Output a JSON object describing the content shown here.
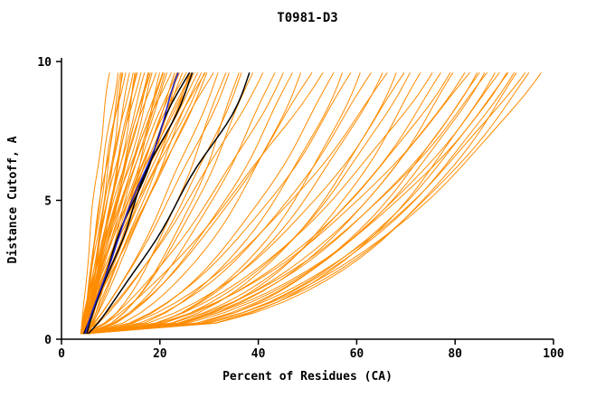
{
  "title": "T0981-D3",
  "colors": {
    "orange": "#FF8C00",
    "black": "#000000",
    "blue": "#2222CC",
    "axis": "#000000",
    "background": "#FFFFFF"
  },
  "chart_data": {
    "type": "line",
    "title": "T0981-D3",
    "xlabel": "Percent of Residues (CA)",
    "ylabel": "Distance Cutoff, A",
    "xlim": [
      0,
      100
    ],
    "ylim": [
      0,
      10
    ],
    "x_ticks": [
      0,
      20,
      40,
      60,
      80,
      100
    ],
    "y_ticks": [
      0,
      5,
      10
    ],
    "grid": false,
    "legend": "none",
    "curve_y_start": 0.2,
    "curve_y_end": 9.6,
    "curve_point_format": "[x_percent_at_bottom, x_percent_at_top_10A, shape_exponent]",
    "orange_curves": [
      [
        4,
        10,
        1.2
      ],
      [
        4.5,
        11,
        1.0
      ],
      [
        5,
        12,
        1.3
      ],
      [
        4,
        12,
        0.9
      ],
      [
        5,
        13,
        1.1
      ],
      [
        4.5,
        13,
        1.3
      ],
      [
        4,
        14,
        1.0
      ],
      [
        5.5,
        14,
        1.2
      ],
      [
        4,
        15,
        0.8
      ],
      [
        5,
        15,
        1.1
      ],
      [
        4.5,
        16,
        1.3
      ],
      [
        4,
        16,
        1.0
      ],
      [
        5,
        17,
        1.2
      ],
      [
        4.5,
        17,
        0.9
      ],
      [
        4,
        18,
        1.1
      ],
      [
        5.5,
        18,
        1.3
      ],
      [
        4,
        19,
        1.0
      ],
      [
        5,
        19,
        1.2
      ],
      [
        4.5,
        20,
        0.85
      ],
      [
        5,
        20,
        1.1
      ],
      [
        4,
        21,
        1.25
      ],
      [
        5.5,
        21,
        0.95
      ],
      [
        4,
        22,
        1.1
      ],
      [
        5,
        22,
        1.3
      ],
      [
        4.5,
        23,
        1.0
      ],
      [
        5,
        23,
        1.2
      ],
      [
        4,
        24,
        0.9
      ],
      [
        5.5,
        24,
        1.15
      ],
      [
        4,
        25,
        1.05
      ],
      [
        5,
        25,
        1.25
      ],
      [
        4.5,
        26,
        0.95
      ],
      [
        5,
        26,
        1.15
      ],
      [
        4,
        27,
        1.3
      ],
      [
        5.5,
        27,
        1.0
      ],
      [
        4,
        28,
        1.2
      ],
      [
        5,
        28,
        0.9
      ],
      [
        4.5,
        29,
        1.1
      ],
      [
        5,
        29,
        1.25
      ],
      [
        4,
        30,
        1.0
      ],
      [
        5.5,
        31,
        1.15
      ],
      [
        4,
        32,
        0.75
      ],
      [
        5,
        33,
        0.6
      ],
      [
        4.5,
        34,
        0.8
      ],
      [
        5,
        36,
        0.55
      ],
      [
        4,
        37,
        0.7
      ],
      [
        5.5,
        39,
        0.62
      ],
      [
        4,
        41,
        0.78
      ],
      [
        5,
        43,
        0.58
      ],
      [
        4.5,
        45,
        0.7
      ],
      [
        5,
        47,
        0.6
      ],
      [
        4,
        49,
        0.52
      ],
      [
        5,
        51,
        0.66
      ],
      [
        4.5,
        53,
        0.74
      ],
      [
        4,
        55,
        0.5
      ],
      [
        5,
        57,
        0.46
      ],
      [
        4.5,
        59,
        0.55
      ],
      [
        5,
        61,
        0.42
      ],
      [
        4,
        63,
        0.5
      ],
      [
        5.5,
        65,
        0.45
      ],
      [
        4,
        66,
        0.55
      ],
      [
        5,
        68,
        0.4
      ],
      [
        4.5,
        70,
        0.5
      ],
      [
        5,
        71,
        0.45
      ],
      [
        4,
        73,
        0.38
      ],
      [
        5,
        75,
        0.5
      ],
      [
        4.5,
        77,
        0.43
      ],
      [
        5,
        79,
        0.48
      ],
      [
        4,
        80,
        0.4
      ],
      [
        5.5,
        82,
        0.45
      ],
      [
        4,
        83,
        0.5
      ],
      [
        5,
        84,
        0.38
      ],
      [
        4.5,
        85,
        0.44
      ],
      [
        5,
        86,
        0.4
      ],
      [
        4,
        87,
        0.47
      ],
      [
        5,
        88,
        0.36
      ],
      [
        4.5,
        89,
        0.43
      ],
      [
        5,
        90,
        0.39
      ],
      [
        4,
        91,
        0.45
      ],
      [
        5,
        92,
        0.4
      ],
      [
        4.5,
        93,
        0.37
      ],
      [
        5,
        94,
        0.43
      ],
      [
        4,
        95,
        0.39
      ],
      [
        5,
        97,
        0.42
      ]
    ],
    "black_curves": [
      [
        5,
        27,
        1.1
      ],
      [
        4.5,
        25,
        1.0
      ],
      [
        5.5,
        38,
        0.85
      ]
    ],
    "blue_curves": [
      [
        5,
        24,
        1.05
      ]
    ]
  }
}
